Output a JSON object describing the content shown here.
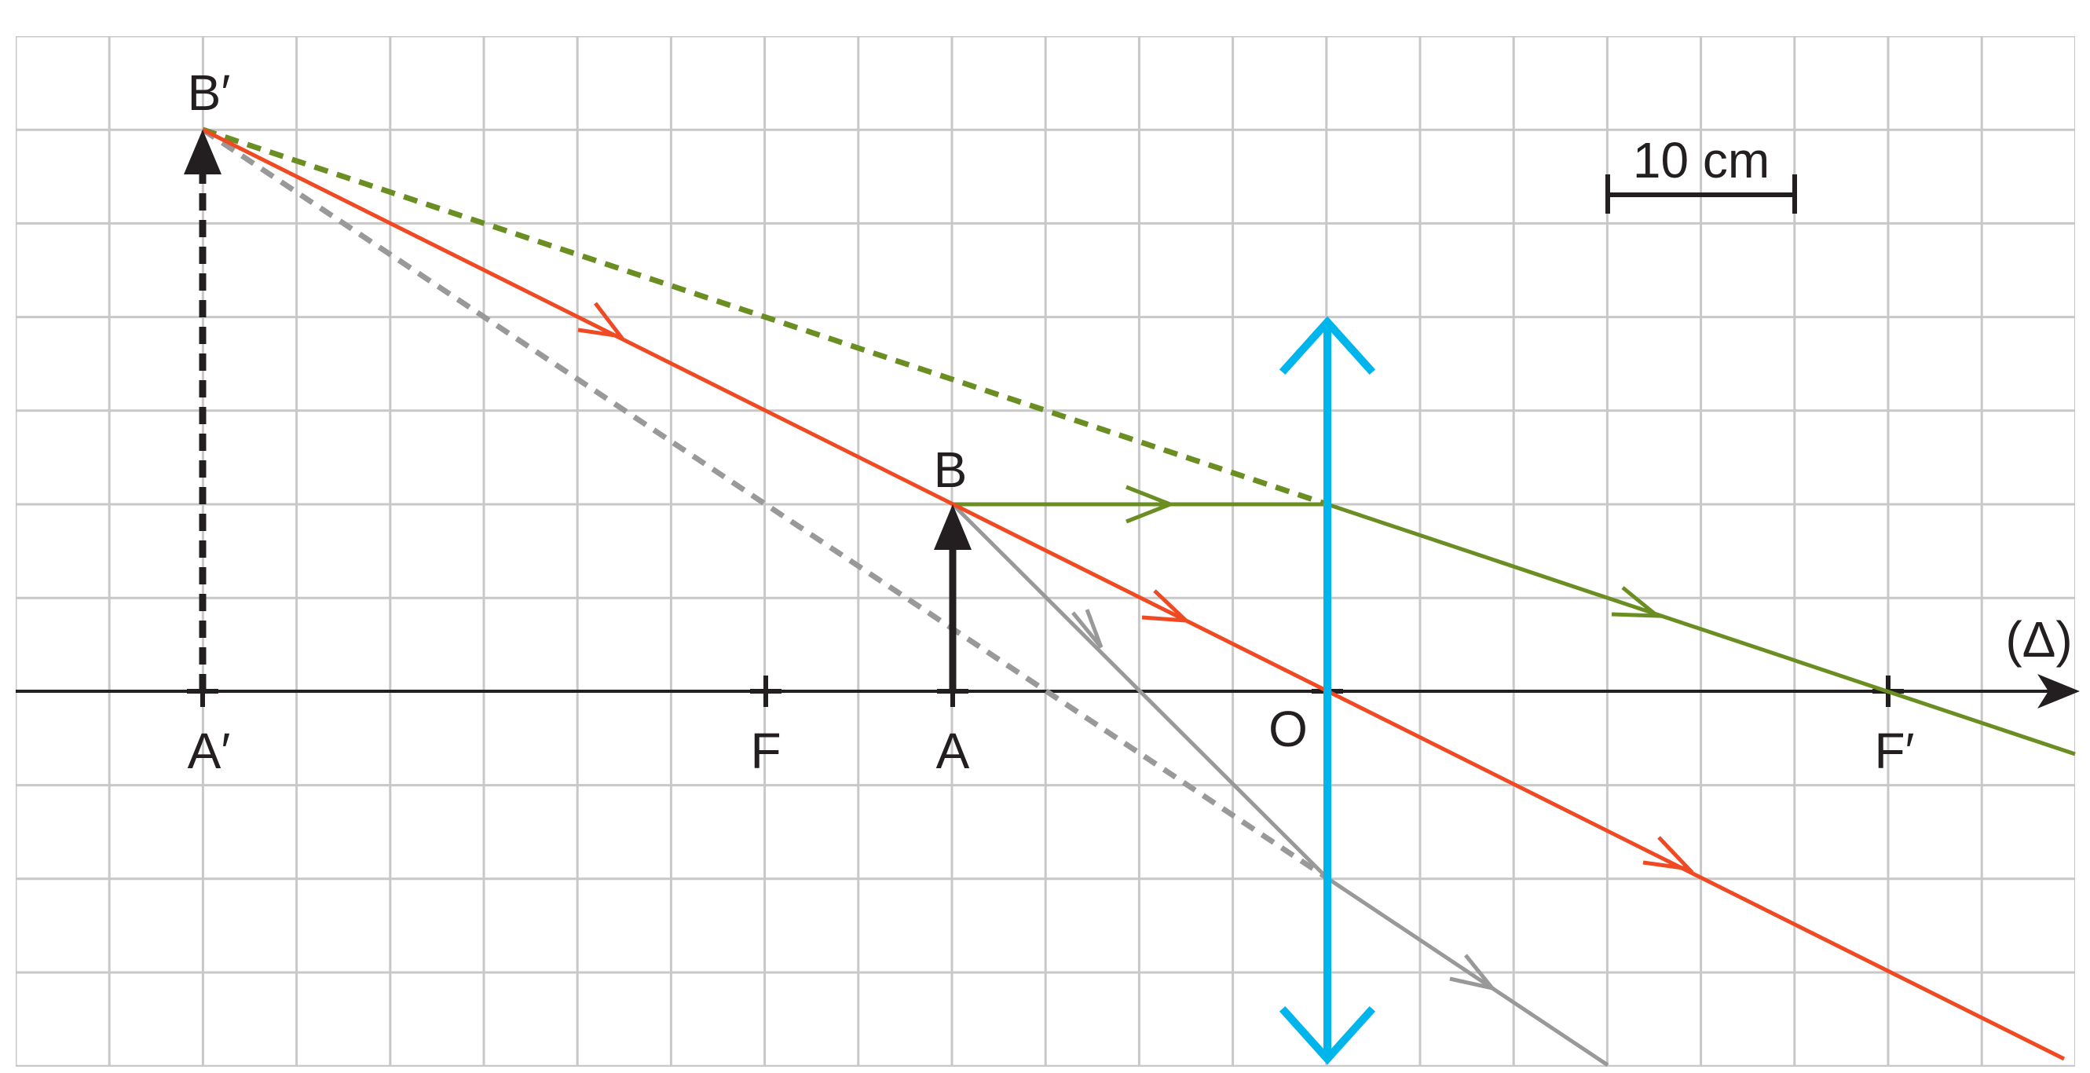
{
  "labels": {
    "object_base": "A",
    "object_tip": "B",
    "image_base": "A′",
    "image_tip": "B′",
    "focal_object": "F",
    "focal_image": "F′",
    "optical_center": "O",
    "axis": "(Δ)"
  },
  "scale_bar": {
    "text": "10 cm"
  },
  "colors": {
    "grid": "#c8c8c8",
    "axis": "#231f20",
    "lens": "#00b5ec",
    "ray_through_center": "#ef4a24",
    "ray_parallel": "#6b8e23",
    "ray_through_focus": "#999999",
    "object": "#231f20"
  }
}
